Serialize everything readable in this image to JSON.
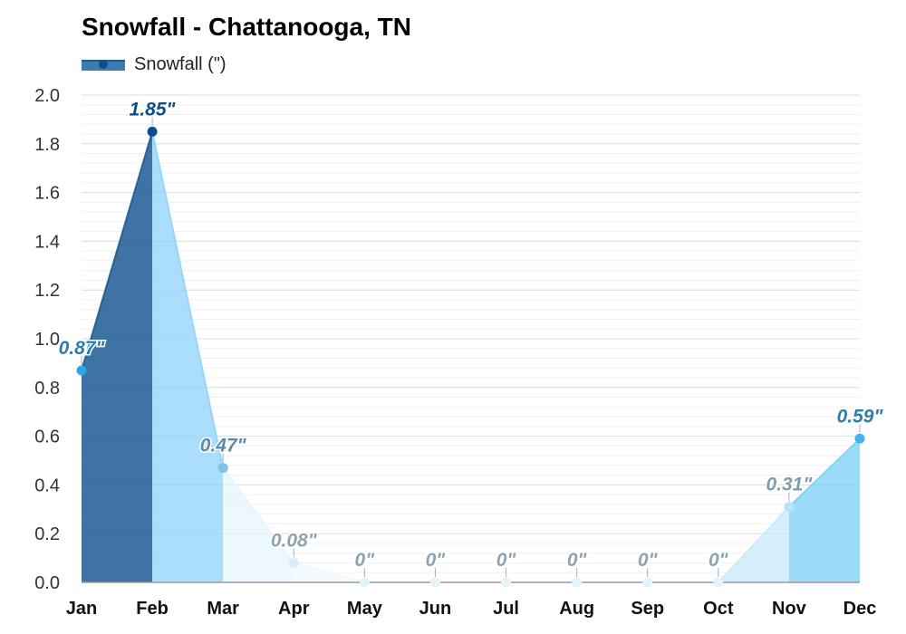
{
  "chart_data": {
    "type": "area",
    "title": "Snowfall - Chattanooga, TN",
    "legend": [
      {
        "name": "Snowfall (\")",
        "color": "#1d5b94"
      }
    ],
    "categories": [
      "Jan",
      "Feb",
      "Mar",
      "Apr",
      "May",
      "Jun",
      "Jul",
      "Aug",
      "Sep",
      "Oct",
      "Nov",
      "Dec"
    ],
    "series": [
      {
        "name": "Snowfall (\")",
        "values": [
          0.87,
          1.85,
          0.47,
          0.08,
          0,
          0,
          0,
          0,
          0,
          0,
          0.31,
          0.59
        ],
        "labels": [
          "0.87\"",
          "1.85\"",
          "0.47\"",
          "0.08\"",
          "0\"",
          "0\"",
          "0\"",
          "0\"",
          "0\"",
          "0\"",
          "0.31\"",
          "0.59\""
        ]
      }
    ],
    "segment_colors": [
      "#1d5b94",
      "#8fd3fb",
      "#e6f4fd",
      "#f0f8fe",
      "#f0f8fe",
      "#f0f8fe",
      "#f0f8fe",
      "#f0f8fe",
      "#f0f8fe",
      "#c9e9fb",
      "#7bd0f7"
    ],
    "point_colors": [
      "#2aa7e8",
      "#0a4f8c",
      "#7ec4e8",
      "#d9eefa",
      "#e4f3fc",
      "#e4f3fc",
      "#e4f3fc",
      "#e4f3fc",
      "#e4f3fc",
      "#e4f3fc",
      "#b9e2f7",
      "#44b3ec"
    ],
    "label_colors": [
      "#2b7fa8",
      "#0a4f8c",
      "#5b8ba6",
      "#8ea3b0",
      "#8ea3b0",
      "#8ea3b0",
      "#8ea3b0",
      "#8ea3b0",
      "#8ea3b0",
      "#8ea3b0",
      "#7f9cae",
      "#2b7fa8"
    ],
    "yticks": [
      "0.0",
      "0.2",
      "0.4",
      "0.6",
      "0.8",
      "1.0",
      "1.2",
      "1.4",
      "1.6",
      "1.8",
      "2.0"
    ],
    "ylim": [
      0,
      2.0
    ],
    "grid": true,
    "xlabel": "",
    "ylabel": ""
  }
}
